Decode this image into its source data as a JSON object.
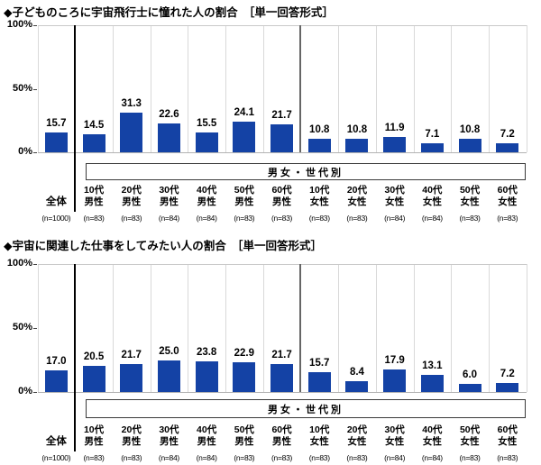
{
  "chart_data": [
    {
      "type": "bar",
      "title": "◆子どものころに宇宙飛行士に憧れた人の割合　［単一回答形式］",
      "group_label": "男女・世代別",
      "ylim": [
        0,
        100
      ],
      "yticks": [
        {
          "label": "100%",
          "value": 100
        },
        {
          "label": "50%",
          "value": 50
        },
        {
          "label": "0%",
          "value": 0
        }
      ],
      "bar_color": "#1442a5",
      "grid": "vertical-only",
      "legend": "none",
      "categories": [
        {
          "label": "全体",
          "lines": [
            "全体"
          ],
          "n": "(n=1000)"
        },
        {
          "label": "10代男性",
          "lines": [
            "10代",
            "男性"
          ],
          "n": "(n=83)"
        },
        {
          "label": "20代男性",
          "lines": [
            "20代",
            "男性"
          ],
          "n": "(n=83)"
        },
        {
          "label": "30代男性",
          "lines": [
            "30代",
            "男性"
          ],
          "n": "(n=84)"
        },
        {
          "label": "40代男性",
          "lines": [
            "40代",
            "男性"
          ],
          "n": "(n=84)"
        },
        {
          "label": "50代男性",
          "lines": [
            "50代",
            "男性"
          ],
          "n": "(n=83)"
        },
        {
          "label": "60代男性",
          "lines": [
            "60代",
            "男性"
          ],
          "n": "(n=83)"
        },
        {
          "label": "10代女性",
          "lines": [
            "10代",
            "女性"
          ],
          "n": "(n=83)"
        },
        {
          "label": "20代女性",
          "lines": [
            "20代",
            "女性"
          ],
          "n": "(n=83)"
        },
        {
          "label": "30代女性",
          "lines": [
            "30代",
            "女性"
          ],
          "n": "(n=84)"
        },
        {
          "label": "40代女性",
          "lines": [
            "40代",
            "女性"
          ],
          "n": "(n=84)"
        },
        {
          "label": "50代女性",
          "lines": [
            "50代",
            "女性"
          ],
          "n": "(n=83)"
        },
        {
          "label": "60代女性",
          "lines": [
            "60代",
            "女性"
          ],
          "n": "(n=83)"
        }
      ],
      "values": [
        15.7,
        14.5,
        31.3,
        22.6,
        15.5,
        24.1,
        21.7,
        10.8,
        10.8,
        11.9,
        7.1,
        10.8,
        7.2
      ]
    },
    {
      "type": "bar",
      "title": "◆宇宙に関連した仕事をしてみたい人の割合　［単一回答形式］",
      "group_label": "男女・世代別",
      "ylim": [
        0,
        100
      ],
      "yticks": [
        {
          "label": "100%",
          "value": 100
        },
        {
          "label": "50%",
          "value": 50
        },
        {
          "label": "0%",
          "value": 0
        }
      ],
      "bar_color": "#1442a5",
      "grid": "vertical-only",
      "legend": "none",
      "categories": [
        {
          "label": "全体",
          "lines": [
            "全体"
          ],
          "n": "(n=1000)"
        },
        {
          "label": "10代男性",
          "lines": [
            "10代",
            "男性"
          ],
          "n": "(n=83)"
        },
        {
          "label": "20代男性",
          "lines": [
            "20代",
            "男性"
          ],
          "n": "(n=83)"
        },
        {
          "label": "30代男性",
          "lines": [
            "30代",
            "男性"
          ],
          "n": "(n=84)"
        },
        {
          "label": "40代男性",
          "lines": [
            "40代",
            "男性"
          ],
          "n": "(n=84)"
        },
        {
          "label": "50代男性",
          "lines": [
            "50代",
            "男性"
          ],
          "n": "(n=83)"
        },
        {
          "label": "60代男性",
          "lines": [
            "60代",
            "男性"
          ],
          "n": "(n=83)"
        },
        {
          "label": "10代女性",
          "lines": [
            "10代",
            "女性"
          ],
          "n": "(n=83)"
        },
        {
          "label": "20代女性",
          "lines": [
            "20代",
            "女性"
          ],
          "n": "(n=83)"
        },
        {
          "label": "30代女性",
          "lines": [
            "30代",
            "女性"
          ],
          "n": "(n=84)"
        },
        {
          "label": "40代女性",
          "lines": [
            "40代",
            "女性"
          ],
          "n": "(n=84)"
        },
        {
          "label": "50代女性",
          "lines": [
            "50代",
            "女性"
          ],
          "n": "(n=83)"
        },
        {
          "label": "60代女性",
          "lines": [
            "60代",
            "女性"
          ],
          "n": "(n=83)"
        }
      ],
      "values": [
        17.0,
        20.5,
        21.7,
        25.0,
        23.8,
        22.9,
        21.7,
        15.7,
        8.4,
        17.9,
        13.1,
        6.0,
        7.2
      ]
    }
  ]
}
